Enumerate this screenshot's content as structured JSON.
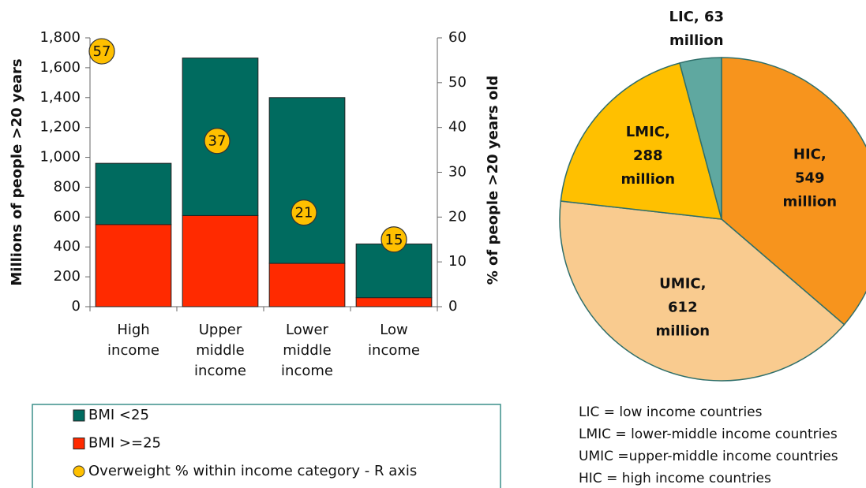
{
  "chart_data": [
    {
      "type": "bar",
      "categories": [
        "High income",
        "Upper middle income",
        "Lower middle income",
        "Low income"
      ],
      "series": [
        {
          "name": "BMI <25",
          "color": "#006B5F",
          "values": [
            410,
            1055,
            1110,
            360
          ]
        },
        {
          "name": "BMI >=25",
          "color": "#FF2A00",
          "values": [
            550,
            610,
            290,
            60
          ]
        },
        {
          "name": "Overweight % within income category - R axis",
          "color": "#FFC000",
          "axis": "y2",
          "values": [
            57,
            37,
            21,
            15
          ]
        }
      ],
      "ylabel": "Millions of people >20 years",
      "y2label": "% of people >20 years old",
      "ylim": [
        0,
        1800
      ],
      "yticks": [
        0,
        200,
        400,
        600,
        800,
        {
          "value": 1000,
          "label": "1,000"
        },
        {
          "value": 1200,
          "label": "1,200"
        },
        {
          "value": 1400,
          "label": "1,400"
        },
        {
          "value": 1600,
          "label": "1,600"
        },
        {
          "value": 1800,
          "label": "1,800"
        }
      ],
      "y2lim": [
        0,
        60
      ],
      "y2ticks": [
        0,
        10,
        20,
        30,
        40,
        50,
        60
      ]
    },
    {
      "type": "pie",
      "values": [
        549,
        612,
        288,
        63
      ],
      "value_labels": [
        "HIC, 549 million",
        "UMIC, 612 million",
        "LMIC, 288 million",
        "LIC, 63 million"
      ],
      "colors": [
        "#F7941D",
        "#F9CB8F",
        "#FFC000",
        "#5FA8A0"
      ],
      "annotations": [
        "LIC = low income countries",
        "LMIC = lower-middle income countries",
        "UMIC =upper-middle income countries",
        "HIC = high income countries"
      ]
    }
  ]
}
